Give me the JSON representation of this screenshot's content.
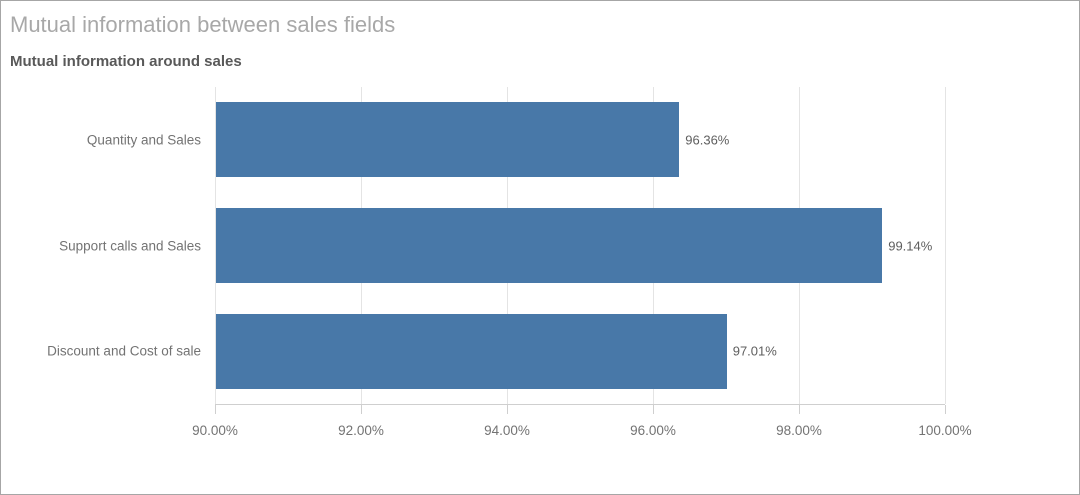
{
  "chart_data": {
    "type": "bar",
    "orientation": "horizontal",
    "title": "Mutual information between sales fields",
    "subtitle": "Mutual information around sales",
    "categories": [
      "Quantity and Sales",
      "Support calls and Sales",
      "Discount and Cost of sale"
    ],
    "values": [
      96.36,
      99.14,
      97.01
    ],
    "value_labels": [
      "96.36%",
      "99.14%",
      "97.01%"
    ],
    "x_ticks": [
      "90.00%",
      "92.00%",
      "94.00%",
      "96.00%",
      "98.00%",
      "100.00%"
    ],
    "xlim": [
      90,
      100
    ],
    "grid": true,
    "legend": "none",
    "bar_color": "#4878a8",
    "grid_color": "#e4e4e4",
    "axis_color": "#cfcfcf"
  }
}
